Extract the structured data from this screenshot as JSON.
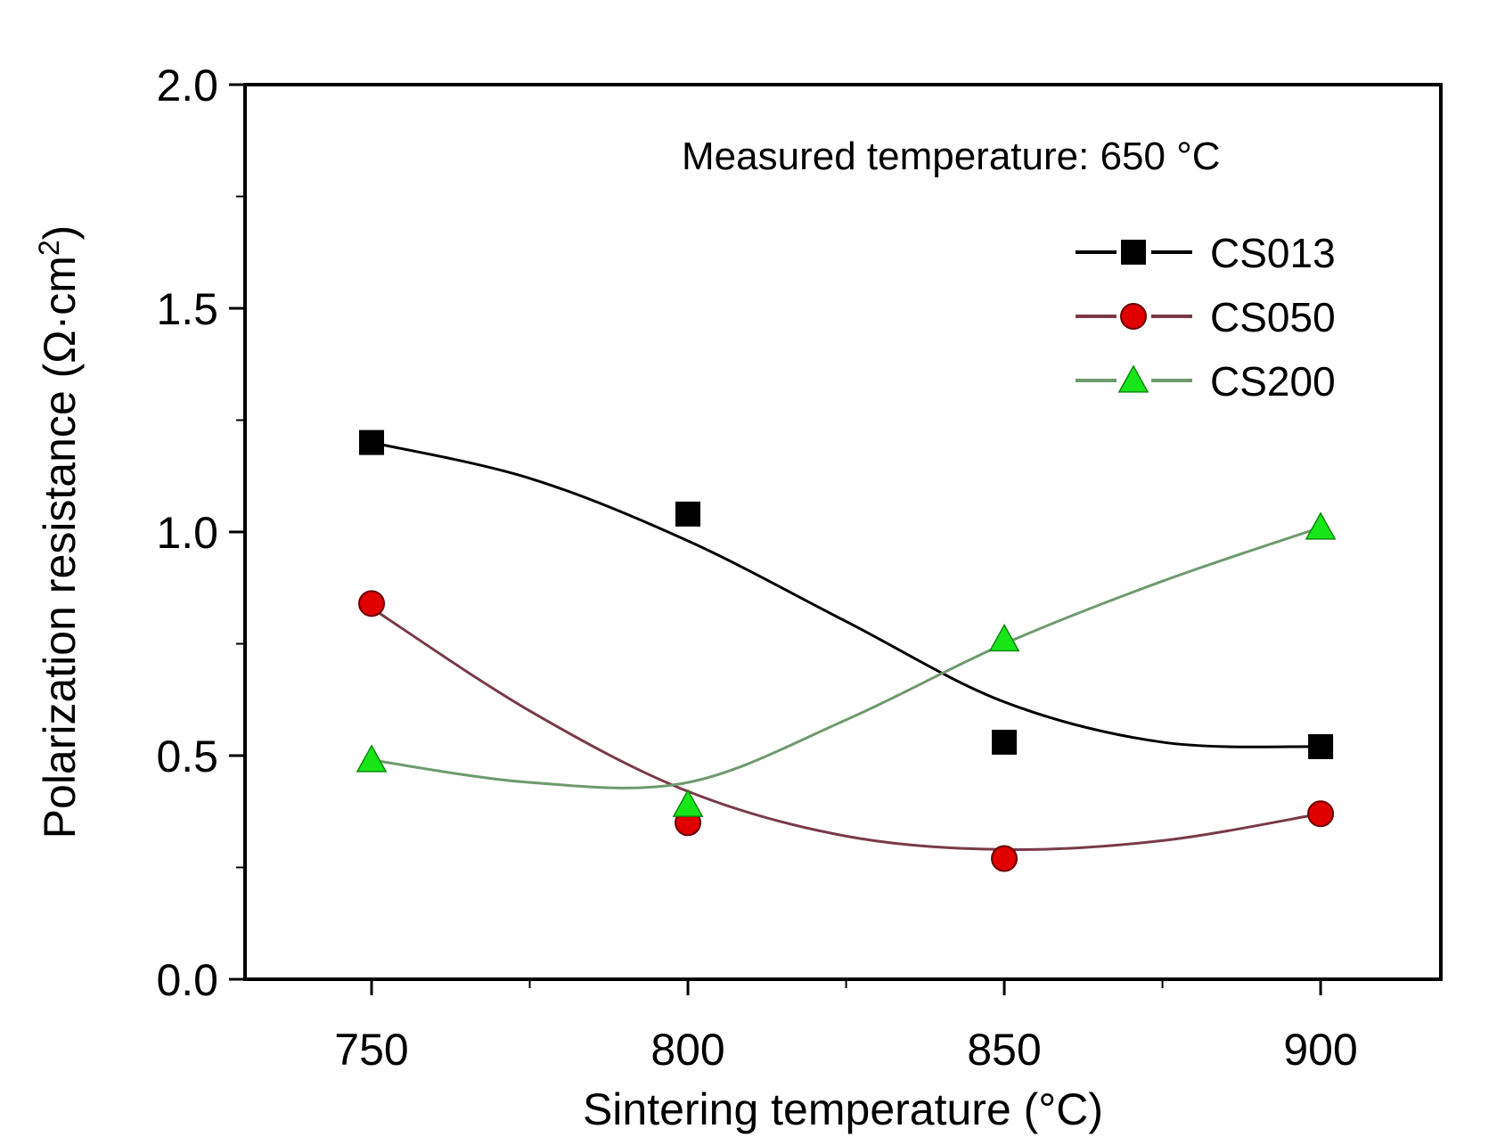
{
  "chart_data": {
    "type": "line",
    "title": "",
    "annotation": "Measured temperature: 650 °C",
    "xlabel": "Sintering temperature (°C)",
    "ylabel_main": "Polarization resistance (Ω·cm",
    "ylabel_sup": "2",
    "ylabel_close": ")",
    "xlim": [
      730,
      919
    ],
    "ylim": [
      0,
      2.0
    ],
    "xticks": [
      750,
      800,
      850,
      900
    ],
    "xtick_labels": [
      "750",
      "800",
      "850",
      "900"
    ],
    "x_minor_ticks": [
      775,
      825,
      875
    ],
    "yticks": [
      0.0,
      0.5,
      1.0,
      1.5,
      2.0
    ],
    "ytick_labels": [
      "0.0",
      "0.5",
      "1.0",
      "1.5",
      "2.0"
    ],
    "y_minor_ticks": [
      0.25,
      0.75,
      1.25,
      1.75
    ],
    "grid": false,
    "legend_position": "top-right",
    "x": [
      750,
      800,
      850,
      900
    ],
    "series": [
      {
        "name": "CS013",
        "marker": "square",
        "color": "#000000",
        "line_color": "#000000",
        "values": [
          1.2,
          1.04,
          0.53,
          0.52
        ],
        "fit": {
          "x": [
            750,
            775,
            800,
            825,
            850,
            875,
            900
          ],
          "y": [
            1.2,
            1.12,
            0.98,
            0.8,
            0.62,
            0.53,
            0.52
          ]
        }
      },
      {
        "name": "CS050",
        "marker": "circle",
        "color": "#e00000",
        "line_color": "#7a3a48",
        "values": [
          0.84,
          0.35,
          0.27,
          0.37
        ],
        "fit": {
          "x": [
            750,
            775,
            800,
            825,
            850,
            875,
            900
          ],
          "y": [
            0.83,
            0.6,
            0.42,
            0.32,
            0.29,
            0.31,
            0.37
          ]
        }
      },
      {
        "name": "CS200",
        "marker": "triangle",
        "color": "#19e619",
        "line_color": "#6f9a6f",
        "values": [
          0.49,
          0.39,
          0.76,
          1.01
        ],
        "fit": {
          "x": [
            750,
            775,
            800,
            825,
            850,
            875,
            900
          ],
          "y": [
            0.49,
            0.44,
            0.44,
            0.58,
            0.75,
            0.89,
            1.01
          ]
        }
      }
    ]
  }
}
